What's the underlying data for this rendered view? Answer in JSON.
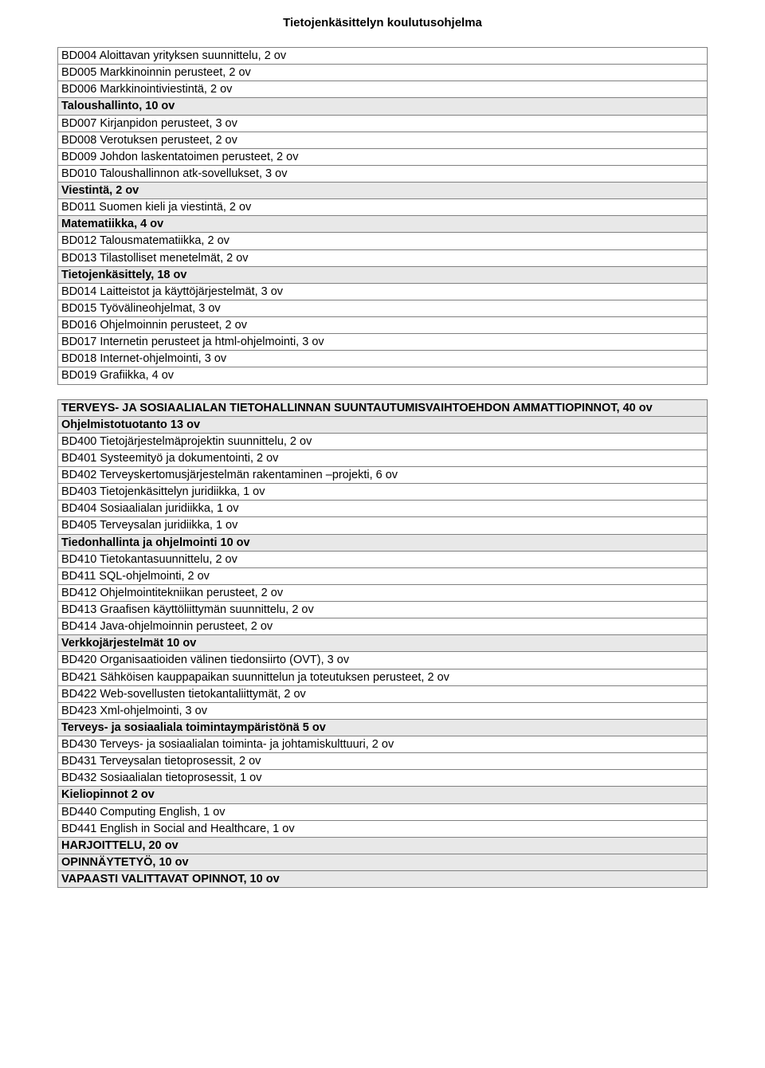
{
  "title": "Tietojenkäsittelyn koulutusohjelma",
  "colors": {
    "background": "#ffffff",
    "text": "#000000",
    "border": "#808080",
    "shaded": "#e8e8e8"
  },
  "fonts": {
    "family": "Arial",
    "title_size": 15,
    "cell_size": 14.5
  },
  "table1": {
    "rows": [
      {
        "text": "BD004 Aloittavan yrityksen suunnittelu, 2 ov",
        "shaded": false,
        "bold": false
      },
      {
        "text": "BD005 Markkinoinnin perusteet, 2 ov",
        "shaded": false,
        "bold": false
      },
      {
        "text": "BD006 Markkinointiviestintä, 2 ov",
        "shaded": false,
        "bold": false
      },
      {
        "text": "Taloushallinto, 10 ov",
        "shaded": true,
        "bold": true
      },
      {
        "text": "BD007 Kirjanpidon perusteet, 3 ov",
        "shaded": false,
        "bold": false
      },
      {
        "text": "BD008 Verotuksen perusteet, 2 ov",
        "shaded": false,
        "bold": false
      },
      {
        "text": "BD009 Johdon laskentatoimen perusteet, 2 ov",
        "shaded": false,
        "bold": false
      },
      {
        "text": "BD010 Taloushallinnon atk-sovellukset, 3 ov",
        "shaded": false,
        "bold": false
      },
      {
        "text": "Viestintä,  2 ov",
        "shaded": true,
        "bold": true
      },
      {
        "text": "BD011 Suomen kieli ja viestintä, 2 ov",
        "shaded": false,
        "bold": false
      },
      {
        "text": "Matematiikka, 4 ov",
        "shaded": true,
        "bold": true
      },
      {
        "text": "BD012 Talousmatematiikka, 2 ov",
        "shaded": false,
        "bold": false
      },
      {
        "text": "BD013 Tilastolliset menetelmät, 2 ov",
        "shaded": false,
        "bold": false
      },
      {
        "text": "Tietojenkäsittely, 18 ov",
        "shaded": true,
        "bold": true
      },
      {
        "text": "BD014 Laitteistot ja käyttöjärjestelmät, 3 ov",
        "shaded": false,
        "bold": false
      },
      {
        "text": "BD015 Työvälineohjelmat, 3 ov",
        "shaded": false,
        "bold": false
      },
      {
        "text": "BD016 Ohjelmoinnin perusteet, 2 ov",
        "shaded": false,
        "bold": false
      },
      {
        "text": "BD017 Internetin perusteet ja html-ohjelmointi, 3 ov",
        "shaded": false,
        "bold": false
      },
      {
        "text": "BD018 Internet-ohjelmointi, 3 ov",
        "shaded": false,
        "bold": false
      },
      {
        "text": "BD019 Grafiikka, 4 ov",
        "shaded": false,
        "bold": false
      }
    ]
  },
  "table2": {
    "rows": [
      {
        "text": "TERVEYS- JA SOSIAALIALAN TIETOHALLINNAN SUUNTAUTUMISVAIHTOEHDON AMMATTIOPINNOT, 40 ov",
        "shaded": true,
        "bold": true
      },
      {
        "text": "Ohjelmistotuotanto 13 ov",
        "shaded": true,
        "bold": true
      },
      {
        "text": "BD400 Tietojärjestelmäprojektin suunnittelu, 2 ov",
        "shaded": false,
        "bold": false
      },
      {
        "text": "BD401 Systeemityö ja dokumentointi, 2 ov",
        "shaded": false,
        "bold": false
      },
      {
        "text": "BD402 Terveyskertomusjärjestelmän rakentaminen –projekti, 6 ov",
        "shaded": false,
        "bold": false
      },
      {
        "text": "BD403 Tietojenkäsittelyn juridiikka, 1 ov",
        "shaded": false,
        "bold": false
      },
      {
        "text": "BD404 Sosiaalialan juridiikka, 1 ov",
        "shaded": false,
        "bold": false
      },
      {
        "text": "BD405 Terveysalan juridiikka, 1 ov",
        "shaded": false,
        "bold": false
      },
      {
        "text": "Tiedonhallinta ja ohjelmointi 10 ov",
        "shaded": true,
        "bold": true
      },
      {
        "text": "BD410 Tietokantasuunnittelu, 2 ov",
        "shaded": false,
        "bold": false
      },
      {
        "text": "BD411 SQL-ohjelmointi, 2 ov",
        "shaded": false,
        "bold": false
      },
      {
        "text": "BD412 Ohjelmointitekniikan perusteet, 2 ov",
        "shaded": false,
        "bold": false
      },
      {
        "text": "BD413 Graafisen käyttöliittymän suunnittelu, 2 ov",
        "shaded": false,
        "bold": false
      },
      {
        "text": "BD414 Java-ohjelmoinnin perusteet, 2 ov",
        "shaded": false,
        "bold": false
      },
      {
        "text": "Verkkojärjestelmät 10 ov",
        "shaded": true,
        "bold": true
      },
      {
        "text": "BD420 Organisaatioiden välinen tiedonsiirto (OVT), 3 ov",
        "shaded": false,
        "bold": false
      },
      {
        "text": "BD421 Sähköisen kauppapaikan suunnittelun ja toteutuksen perusteet, 2 ov",
        "shaded": false,
        "bold": false
      },
      {
        "text": "BD422 Web-sovellusten tietokantaliittymät, 2 ov",
        "shaded": false,
        "bold": false
      },
      {
        "text": "BD423 Xml-ohjelmointi, 3 ov",
        "shaded": false,
        "bold": false
      },
      {
        "text": "Terveys- ja sosiaaliala toimintaympäristönä 5 ov",
        "shaded": true,
        "bold": true
      },
      {
        "text": "BD430 Terveys- ja sosiaalialan toiminta- ja johtamiskulttuuri, 2 ov",
        "shaded": false,
        "bold": false
      },
      {
        "text": "BD431 Terveysalan tietoprosessit, 2 ov",
        "shaded": false,
        "bold": false
      },
      {
        "text": "BD432 Sosiaalialan tietoprosessit, 1 ov",
        "shaded": false,
        "bold": false
      },
      {
        "text": "Kieliopinnot 2 ov",
        "shaded": true,
        "bold": true
      },
      {
        "text": "BD440 Computing English, 1 ov",
        "shaded": false,
        "bold": false
      },
      {
        "text": "BD441 English in Social and Healthcare, 1 ov",
        "shaded": false,
        "bold": false
      },
      {
        "text": "HARJOITTELU, 20 ov",
        "shaded": true,
        "bold": true
      },
      {
        "text": "OPINNÄYTETYÖ, 10 ov",
        "shaded": true,
        "bold": true
      },
      {
        "text": "VAPAASTI VALITTAVAT OPINNOT, 10 ov",
        "shaded": true,
        "bold": true
      }
    ]
  }
}
